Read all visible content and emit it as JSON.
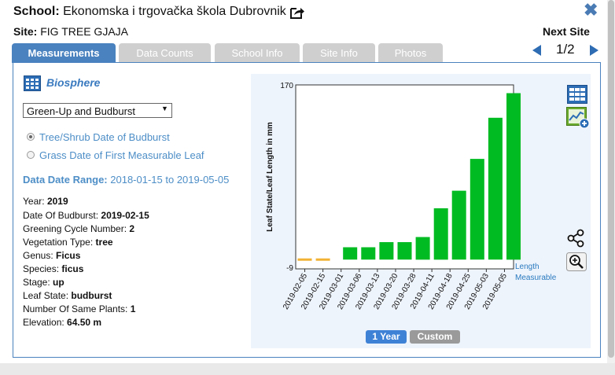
{
  "header": {
    "school_label": "School:",
    "school_name": "Ekonomska i trgovačka škola Dubrovnik",
    "site_label": "Site:",
    "site_name": "FIG TREE GJAJA",
    "next_site_label": "Next Site",
    "pager": "1/2"
  },
  "tabs": [
    {
      "label": "Measurements",
      "active": true
    },
    {
      "label": "Data Counts",
      "active": false
    },
    {
      "label": "School Info",
      "active": false
    },
    {
      "label": "Site Info",
      "active": false
    },
    {
      "label": "Photos",
      "active": false
    }
  ],
  "left": {
    "section_title": "Biosphere",
    "dropdown_value": "Green-Up and Budburst",
    "radio_options": [
      {
        "label": "Tree/Shrub Date of Budburst",
        "selected": true
      },
      {
        "label": "Grass Date of First Measurable Leaf",
        "selected": false
      }
    ],
    "range_label": "Data Date Range:",
    "range_value": "2018-01-15 to 2019-05-05",
    "info": [
      {
        "label": "Year:",
        "value": "2019"
      },
      {
        "label": "Date Of Budburst:",
        "value": "2019-02-15"
      },
      {
        "label": "Greening Cycle Number:",
        "value": "2"
      },
      {
        "label": "Vegetation Type:",
        "value": "tree"
      },
      {
        "label": "Genus:",
        "value": "Ficus"
      },
      {
        "label": "Species:",
        "value": "ficus"
      },
      {
        "label": "Stage:",
        "value": "up"
      },
      {
        "label": "Leaf State:",
        "value": "budburst"
      },
      {
        "label": "Number Of Same Plants:",
        "value": "1"
      },
      {
        "label": "Elevation:",
        "value": "64.50 m"
      }
    ]
  },
  "buttons": {
    "one_year": "1 Year",
    "custom": "Custom"
  },
  "chart_data": {
    "type": "bar",
    "ylabel": "Leaf State/Leaf Length in mm",
    "ymax_label": "170",
    "ymin_label": "-9",
    "ylim": [
      -9,
      170
    ],
    "categories": [
      "2019-02-05",
      "2019-02-15",
      "2019-03-01",
      "2019-03-06",
      "2019-03-13",
      "2019-03-20",
      "2019-03-28",
      "2019-04-11",
      "2019-04-18",
      "2019-04-25",
      "2019-05-03",
      "2019-05-05"
    ],
    "legend_length": "Length",
    "legend_measurable": "Measurable",
    "colors": {
      "bar": "#00bb22",
      "marker": "#f2b233"
    },
    "bars": [
      {
        "x": 2.5,
        "value": 12
      },
      {
        "x": 3.5,
        "value": 12
      },
      {
        "x": 4.5,
        "value": 17
      },
      {
        "x": 5.5,
        "value": 17
      },
      {
        "x": 6.5,
        "value": 22
      },
      {
        "x": 7.5,
        "value": 50
      },
      {
        "x": 8.5,
        "value": 67
      },
      {
        "x": 9.5,
        "value": 98
      },
      {
        "x": 10.5,
        "value": 138
      },
      {
        "x": 11.5,
        "value": 162
      }
    ],
    "markers": [
      {
        "x": 0,
        "value": 0
      },
      {
        "x": 1,
        "value": 0
      }
    ]
  }
}
